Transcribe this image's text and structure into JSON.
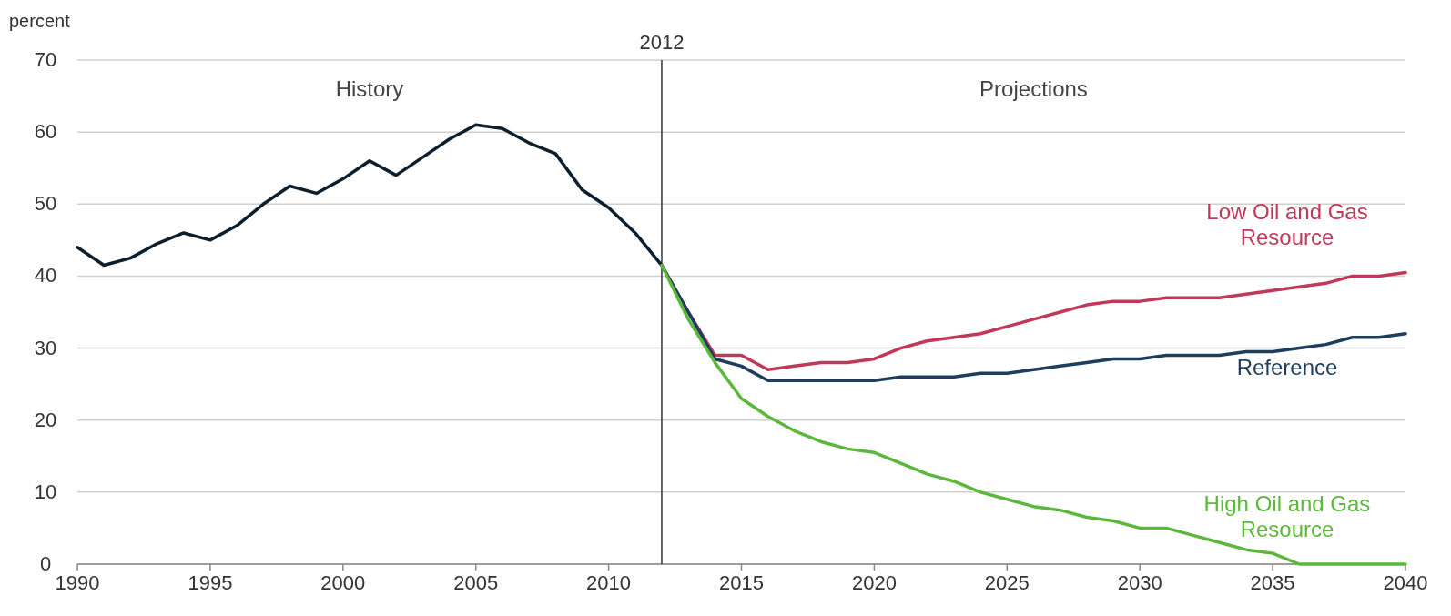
{
  "chart_data": {
    "type": "line",
    "ylabel": "percent",
    "xlim": [
      1990,
      2040
    ],
    "xticks": [
      1990,
      1995,
      2000,
      2005,
      2010,
      2015,
      2020,
      2025,
      2030,
      2035,
      2040
    ],
    "ylim": [
      0,
      70
    ],
    "yticks": [
      0,
      10,
      20,
      30,
      40,
      50,
      60,
      70
    ],
    "grid": "y",
    "marker": "none",
    "line_style": "solid",
    "annotations": [
      "History",
      "Projections"
    ],
    "ref_lines": [
      {
        "axis": "x",
        "value": 2012,
        "label": "2012",
        "color": "#333333"
      }
    ],
    "series": [
      {
        "color": "#0d1f2d",
        "x": [
          1990,
          1991,
          1992,
          1993,
          1994,
          1995,
          1996,
          1997,
          1998,
          1999,
          2000,
          2001,
          2002,
          2003,
          2004,
          2005,
          2006,
          2007,
          2008,
          2009,
          2010,
          2011,
          2012
        ],
        "values": [
          44,
          41.5,
          42.5,
          44.5,
          46,
          45,
          47,
          50,
          52.5,
          51.5,
          53.5,
          56,
          54,
          56.5,
          59,
          61,
          60.5,
          58.5,
          57,
          52,
          49.5,
          46,
          41.5
        ]
      },
      {
        "name": "Low Oil and Gas\nResource",
        "color": "#c0395a",
        "x": [
          2012,
          2013,
          2014,
          2015,
          2016,
          2017,
          2018,
          2019,
          2020,
          2021,
          2022,
          2023,
          2024,
          2025,
          2026,
          2027,
          2028,
          2029,
          2030,
          2031,
          2032,
          2033,
          2034,
          2035,
          2036,
          2037,
          2038,
          2039,
          2040
        ],
        "values": [
          41.5,
          35,
          29,
          29,
          27,
          27.5,
          28,
          28,
          28.5,
          30,
          31,
          31.5,
          32,
          33,
          34,
          35,
          36,
          36.5,
          36.5,
          37,
          37,
          37,
          37.5,
          38,
          38.5,
          39,
          40,
          40,
          40.5
        ]
      },
      {
        "name": "Reference",
        "color": "#1f3d5c",
        "x": [
          2012,
          2013,
          2014,
          2015,
          2016,
          2017,
          2018,
          2019,
          2020,
          2021,
          2022,
          2023,
          2024,
          2025,
          2026,
          2027,
          2028,
          2029,
          2030,
          2031,
          2032,
          2033,
          2034,
          2035,
          2036,
          2037,
          2038,
          2039,
          2040
        ],
        "values": [
          41.5,
          35,
          28.5,
          27.5,
          25.5,
          25.5,
          25.5,
          25.5,
          25.5,
          26,
          26,
          26,
          26.5,
          26.5,
          27,
          27.5,
          28,
          28.5,
          28.5,
          29,
          29,
          29,
          29.5,
          29.5,
          30,
          30.5,
          31.5,
          31.5,
          32
        ]
      },
      {
        "name": "High Oil and Gas\nResource",
        "color": "#5cb83c",
        "x": [
          2012,
          2013,
          2014,
          2015,
          2016,
          2017,
          2018,
          2019,
          2020,
          2021,
          2022,
          2023,
          2024,
          2025,
          2026,
          2027,
          2028,
          2029,
          2030,
          2031,
          2032,
          2033,
          2034,
          2035,
          2036,
          2037,
          2038,
          2039,
          2040
        ],
        "values": [
          41.5,
          34,
          28,
          23,
          20.5,
          18.5,
          17,
          16,
          15.5,
          14,
          12.5,
          11.5,
          10,
          9,
          8,
          7.5,
          6.5,
          6,
          5,
          5,
          4,
          3,
          2,
          1.5,
          0,
          0,
          0,
          0,
          0
        ]
      }
    ]
  }
}
